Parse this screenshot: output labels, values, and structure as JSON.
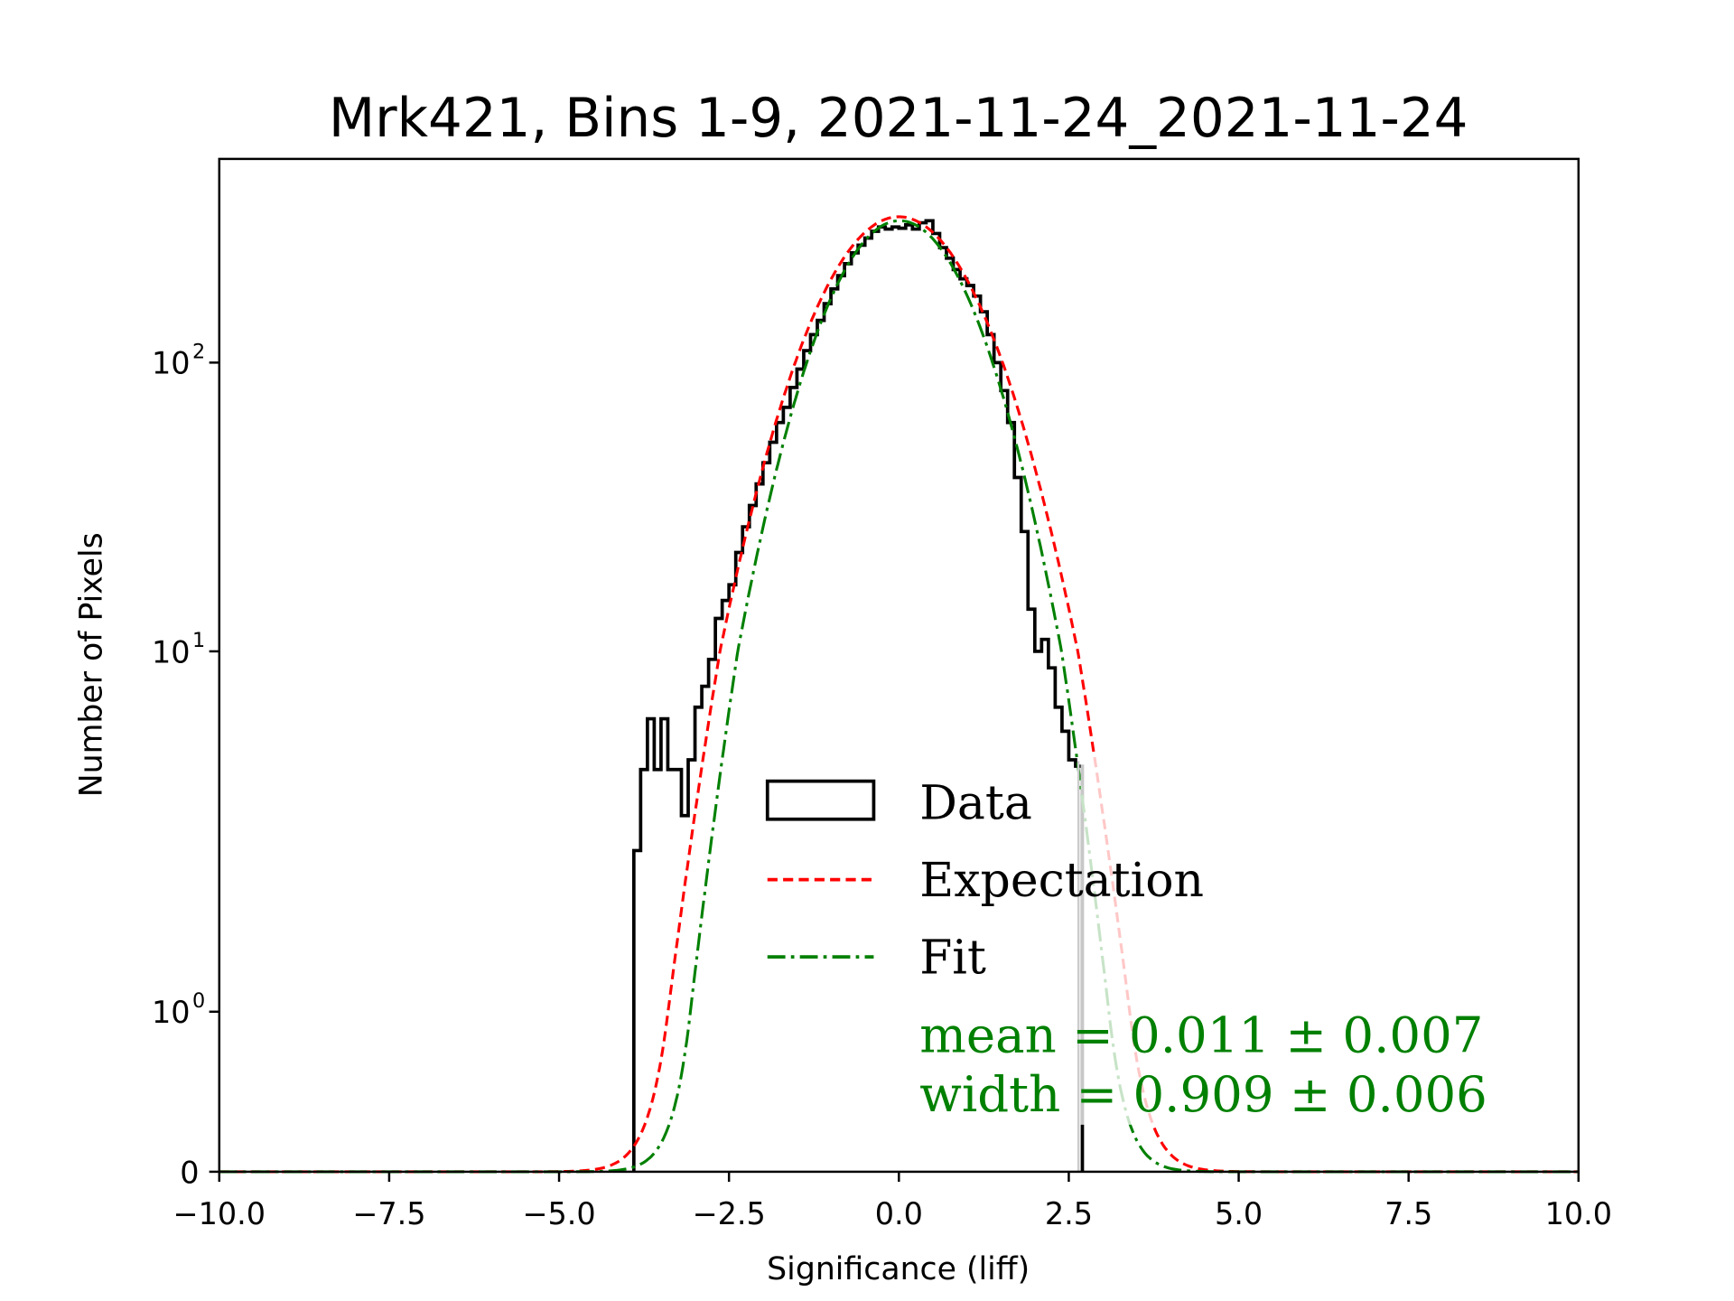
{
  "chart_data": {
    "type": "bar",
    "subtype": "histogram-step",
    "title": "Mrk421, Bins 1-9, 2021-11-24_2021-11-24",
    "xlabel": "Significance (liff)",
    "ylabel": "Number of Pixels",
    "xlim": [
      -10,
      10
    ],
    "yscale": "symlog",
    "ylim": [
      0,
      500
    ],
    "xticks": [
      -10,
      -7.5,
      -5,
      -2.5,
      0,
      2.5,
      5,
      7.5,
      10
    ],
    "xtick_labels": [
      "−10.0",
      "−7.5",
      "−5.0",
      "−2.5",
      "0.0",
      "2.5",
      "5.0",
      "7.5",
      "10.0"
    ],
    "ytick_labels": [
      {
        "value": 0,
        "base": "0",
        "exp": ""
      },
      {
        "value": 1,
        "base": "10",
        "exp": "0"
      },
      {
        "value": 10,
        "base": "10",
        "exp": "1"
      },
      {
        "value": 100,
        "base": "10",
        "exp": "2"
      }
    ],
    "histogram": {
      "name": "Data",
      "bin_start": -3.9,
      "bin_width": 0.1,
      "counts": [
        2.8,
        4.7,
        6.5,
        4.7,
        6.5,
        4.7,
        4.7,
        3.5,
        5.0,
        7.0,
        8.0,
        9.5,
        13,
        15,
        17,
        22,
        27,
        32,
        38,
        45,
        53,
        62,
        70,
        82,
        95,
        110,
        125,
        140,
        160,
        180,
        200,
        220,
        240,
        255,
        270,
        285,
        295,
        290,
        295,
        292,
        300,
        290,
        305,
        310,
        280,
        250,
        230,
        210,
        195,
        185,
        170,
        150,
        125,
        100,
        80,
        62,
        40,
        26,
        14,
        10,
        11,
        9,
        7,
        6,
        5,
        4.8
      ]
    },
    "series": [
      {
        "name": "Expectation",
        "type": "gaussian",
        "mean": 0,
        "sigma": 1,
        "amplitude": 320,
        "color": "#ff0000",
        "style": "dashed"
      },
      {
        "name": "Fit",
        "type": "gaussian",
        "mean": 0.011,
        "sigma": 0.909,
        "amplitude": 310,
        "color": "#008000",
        "style": "dashdot"
      }
    ],
    "legend": {
      "placement": "lower-right",
      "entries": [
        "Data",
        "Expectation",
        "Fit"
      ]
    },
    "annotations": [
      "mean = 0.011 ± 0.007",
      "width = 0.909 ± 0.006"
    ],
    "annotation_color": "#008000"
  }
}
